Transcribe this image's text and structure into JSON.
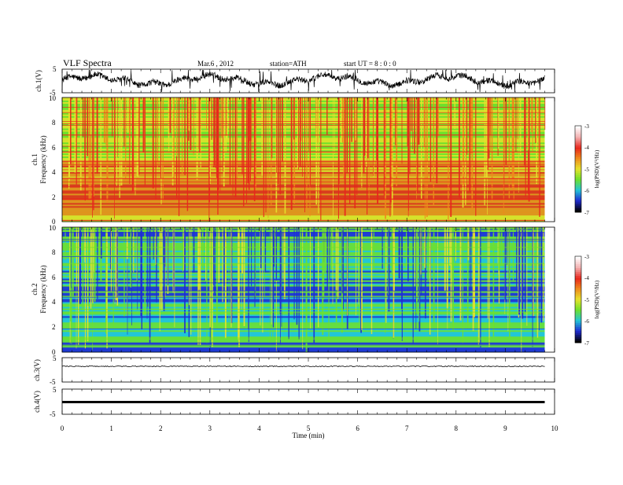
{
  "header": {
    "title": "VLF  Spectra",
    "date": "Mar.6  , 2012",
    "station": "station=ATH",
    "start": "start  UT =   8  : 0  : 0"
  },
  "chart_data": [
    {
      "type": "line",
      "panel": "ch1-waveform",
      "ylabel": "ch.1(V)",
      "ylim": [
        -5,
        5
      ],
      "yticks": [
        "5",
        "-5"
      ],
      "xlim": [
        0,
        10
      ]
    },
    {
      "type": "heatmap",
      "panel": "ch1-spectrogram",
      "ylabel": "Frequency  (kHz)",
      "channel_label": "ch.1",
      "ylim": [
        0,
        10
      ],
      "yticks": [
        "0",
        "2",
        "4",
        "6",
        "8",
        "10"
      ],
      "xlim": [
        0,
        10
      ],
      "colorbar": {
        "label": "log(PSD)(V²/Hz)",
        "range": [
          -7,
          -3
        ],
        "ticks": [
          "-3",
          "-4",
          "-5",
          "-6",
          "-7"
        ]
      }
    },
    {
      "type": "heatmap",
      "panel": "ch2-spectrogram",
      "ylabel": "Frequency  (kHz)",
      "channel_label": "ch.2",
      "ylim": [
        0,
        10
      ],
      "yticks": [
        "0",
        "2",
        "4",
        "6",
        "8",
        "10"
      ],
      "xlim": [
        0,
        10
      ],
      "colorbar": {
        "label": "log(PSD)(V²/Hz)",
        "range": [
          -7,
          -3
        ],
        "ticks": [
          "-3",
          "-4",
          "-5",
          "-6",
          "-7"
        ]
      }
    },
    {
      "type": "line",
      "panel": "ch3-waveform",
      "ylabel": "ch.3(V)",
      "ylim": [
        -5,
        5
      ],
      "yticks": [
        "5",
        "-5"
      ],
      "xlim": [
        0,
        10
      ]
    },
    {
      "type": "line",
      "panel": "ch4-waveform",
      "ylabel": "ch.4(V)",
      "ylim": [
        -5,
        5
      ],
      "yticks": [
        "5",
        "-5"
      ],
      "xlim": [
        0,
        10
      ]
    }
  ],
  "xaxis": {
    "label": "Time  (min)",
    "ticks": [
      "0",
      "1",
      "2",
      "3",
      "4",
      "5",
      "6",
      "7",
      "8",
      "9",
      "10"
    ],
    "data_end": 9.8
  },
  "colors": {
    "red": "#e8261c",
    "orange": "#ee8a1c",
    "yellow": "#e6e22c",
    "green": "#6ee12c",
    "cyan": "#22c6d6",
    "blue": "#1f2bd3"
  }
}
